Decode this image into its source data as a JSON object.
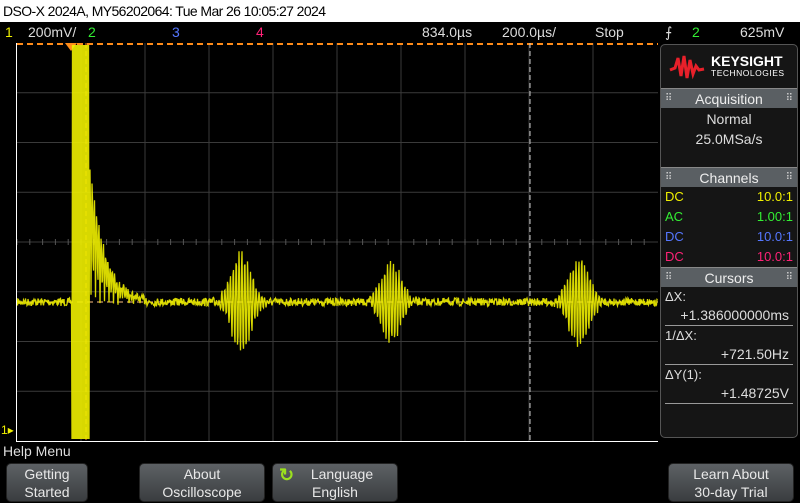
{
  "title": "DSO-X 2024A, MY56202064: Tue Mar 26 10:05:27 2024",
  "status": {
    "ch1": "1",
    "ch1_scale": "200mV/",
    "ch2": "2",
    "ch3": "3",
    "ch4": "4",
    "delay": "834.0µs",
    "timebase": "200.0µs/",
    "run_state": "Stop",
    "trigger_icon": "rising-edge-icon",
    "trigger_source": "2",
    "trigger_level": "625mV"
  },
  "colors": {
    "ch1": "#f0f000",
    "ch2": "#33ee33",
    "ch3": "#5577ff",
    "ch4": "#ff2277",
    "cursor": "#ff8c1a",
    "brand": "#e8202a"
  },
  "brand": {
    "name": "KEYSIGHT",
    "sub": "TECHNOLOGIES"
  },
  "acquisition": {
    "header": "Acquisition",
    "mode": "Normal",
    "rate": "25.0MSa/s"
  },
  "channels": {
    "header": "Channels",
    "items": [
      {
        "coupling": "DC",
        "probe": "10.0:1"
      },
      {
        "coupling": "AC",
        "probe": "1.00:1"
      },
      {
        "coupling": "DC",
        "probe": "10.0:1"
      },
      {
        "coupling": "DC",
        "probe": "10.0:1"
      }
    ]
  },
  "cursors": {
    "header": "Cursors",
    "dx_label": "ΔX:",
    "dx": "+1.386000000ms",
    "inv_label": "1/ΔX:",
    "inv": "+721.50Hz",
    "dy_label": "ΔY(1):",
    "dy": "+1.48725V"
  },
  "ground_marker": "1",
  "help": {
    "label": "Help Menu"
  },
  "buttons": [
    {
      "line1": "Getting",
      "line2": "Started"
    },
    {
      "line1": "About",
      "line2": "Oscilloscope"
    },
    {
      "line1": "Language",
      "line2": "English"
    },
    {
      "line1": "Learn About",
      "line2": "30-day Trial"
    }
  ]
}
